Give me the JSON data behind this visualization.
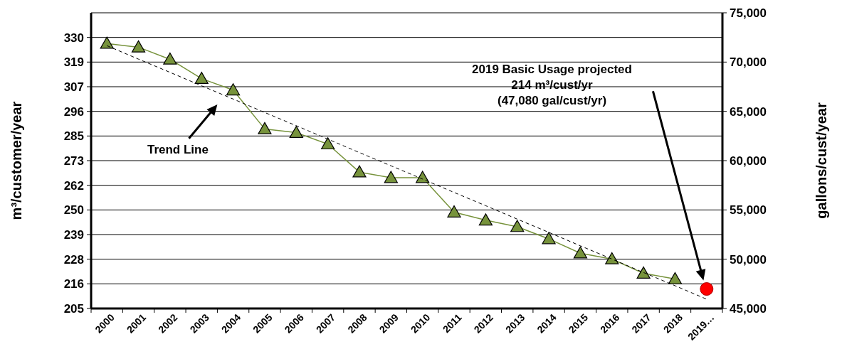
{
  "chart_data": {
    "type": "line",
    "categories": [
      "2000",
      "2001",
      "2002",
      "2003",
      "2004",
      "2005",
      "2006",
      "2007",
      "2008",
      "2009",
      "2010",
      "2011",
      "2012",
      "2013",
      "2014",
      "2015",
      "2016",
      "2017",
      "2018",
      "2019…"
    ],
    "series": [
      {
        "color": "#77933c",
        "marker": "triangle",
        "line_style": "solid",
        "values": [
          327.2,
          325.5,
          319.9,
          311.0,
          305.7,
          287.8,
          286.1,
          280.8,
          267.9,
          265.3,
          265.3,
          249.4,
          245.7,
          242.7,
          237.1,
          230.5,
          227.8,
          221.2,
          218.6,
          null
        ]
      },
      {
        "type": "scatter",
        "color": "#ff0000",
        "marker": "circle",
        "values": [
          null,
          null,
          null,
          null,
          null,
          null,
          null,
          null,
          null,
          null,
          null,
          null,
          null,
          null,
          null,
          null,
          null,
          null,
          null,
          214
        ]
      },
      {
        "color": "#000000",
        "marker": "none",
        "line_style": "dashed",
        "values": [
          326.2,
          320.0,
          313.9,
          307.7,
          301.6,
          295.4,
          289.3,
          283.1,
          276.9,
          270.8,
          264.7,
          258.5,
          252.4,
          246.2,
          240.1,
          233.9,
          227.8,
          221.6,
          215.5,
          209.3
        ]
      }
    ],
    "ylabel": "m³/customer/year",
    "y2label": "gallons/cust/year",
    "ylim": [
      205,
      341.36
    ],
    "yticks": [
      {
        "value": 205,
        "label": "205"
      },
      {
        "value": 216.36,
        "label": "216"
      },
      {
        "value": 227.73,
        "label": "228"
      },
      {
        "value": 239.09,
        "label": "239"
      },
      {
        "value": 250.45,
        "label": "250"
      },
      {
        "value": 261.82,
        "label": "262"
      },
      {
        "value": 273.18,
        "label": "273"
      },
      {
        "value": 284.55,
        "label": "285"
      },
      {
        "value": 295.91,
        "label": "296"
      },
      {
        "value": 307.27,
        "label": "307"
      },
      {
        "value": 318.64,
        "label": "319"
      },
      {
        "value": 330,
        "label": "330"
      }
    ],
    "y2lim": [
      45000,
      75000
    ],
    "y2ticks": [
      {
        "value": 45000,
        "label": "45,000"
      },
      {
        "value": 50000,
        "label": "50,000"
      },
      {
        "value": 55000,
        "label": "55,000"
      },
      {
        "value": 60000,
        "label": "60,000"
      },
      {
        "value": 65000,
        "label": "65,000"
      },
      {
        "value": 70000,
        "label": "70,000"
      },
      {
        "value": 75000,
        "label": "75,000"
      }
    ],
    "grid": "y",
    "annotations": [
      "Trend Line",
      "2019 Basic Usage projected\n214 m³/cust/yr\n(47,080 gal/cust/yr)"
    ]
  }
}
